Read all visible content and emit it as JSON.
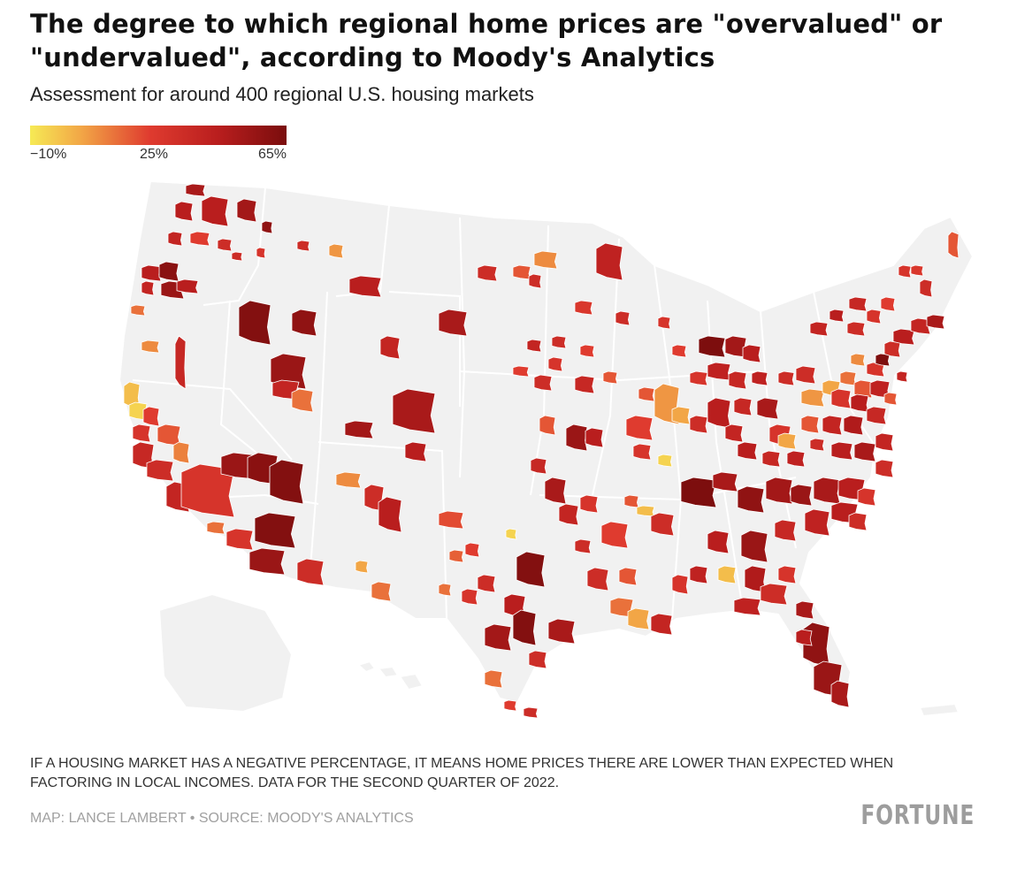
{
  "header": {
    "title": "The degree to which regional home prices are \"overvalued\" or \"undervalued\", according to Moody's Analytics",
    "subtitle": "Assessment for around 400 regional U.S. housing markets"
  },
  "legend": {
    "stops": [
      {
        "value": -10,
        "color": "#f6ea55"
      },
      {
        "value": 5,
        "color": "#f2a646"
      },
      {
        "value": 25,
        "color": "#df3b2f"
      },
      {
        "value": 45,
        "color": "#b91e1e"
      },
      {
        "value": 65,
        "color": "#7a0d0d"
      }
    ],
    "tick_labels": [
      "−10%",
      "25%",
      "65%"
    ]
  },
  "map": {
    "background_color": "#ffffff",
    "land_color": "#f1f1f1",
    "border_color": "#ffffff"
  },
  "footer": {
    "note": "If a housing market has a negative percentage, it means home prices there are lower than expected when factoring in local incomes. Data for the second quarter of 2022.",
    "credit": "Map: Lance Lambert • Source: Moody's Analytics",
    "brand": "FORTUNE"
  }
}
